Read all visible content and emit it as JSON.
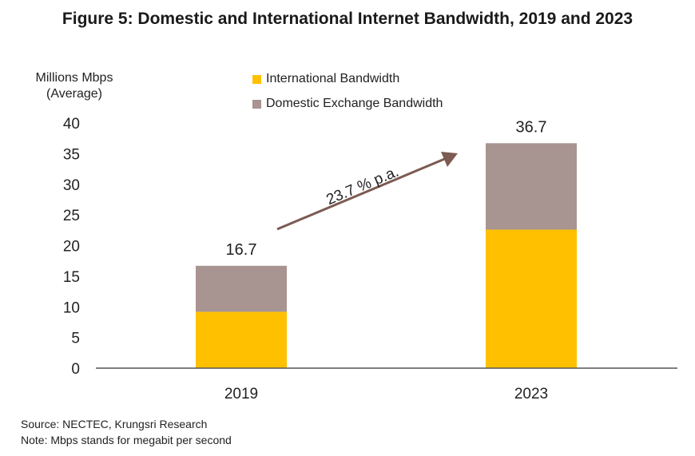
{
  "title": "Figure 5: Domestic and International Internet Bandwidth, 2019 and 2023",
  "y_unit_line1": "Millions Mbps",
  "y_unit_line2": "(Average)",
  "legend": [
    {
      "label": "International Bandwidth",
      "color": "#FFC000"
    },
    {
      "label": "Domestic Exchange Bandwidth",
      "color": "#A89490"
    }
  ],
  "growth_annotation": "23.7 % p.a.",
  "arrow_color": "#7B5B52",
  "axis_color": "#555555",
  "source": "Source: NECTEC, Krungsri Research",
  "note": "Note: Mbps stands for megabit per second",
  "chart_data": {
    "type": "bar",
    "stacked": true,
    "categories": [
      "2019",
      "2023"
    ],
    "series": [
      {
        "name": "International Bandwidth",
        "color": "#FFC000",
        "values": [
          9.2,
          22.6
        ]
      },
      {
        "name": "Domestic Exchange Bandwidth",
        "color": "#A89490",
        "values": [
          7.5,
          14.1
        ]
      }
    ],
    "totals": [
      "16.7",
      "36.7"
    ],
    "ylim": [
      0,
      40
    ],
    "yticks": [
      0,
      5,
      10,
      15,
      20,
      25,
      30,
      35,
      40
    ],
    "grid": false,
    "legend_position": "top"
  }
}
